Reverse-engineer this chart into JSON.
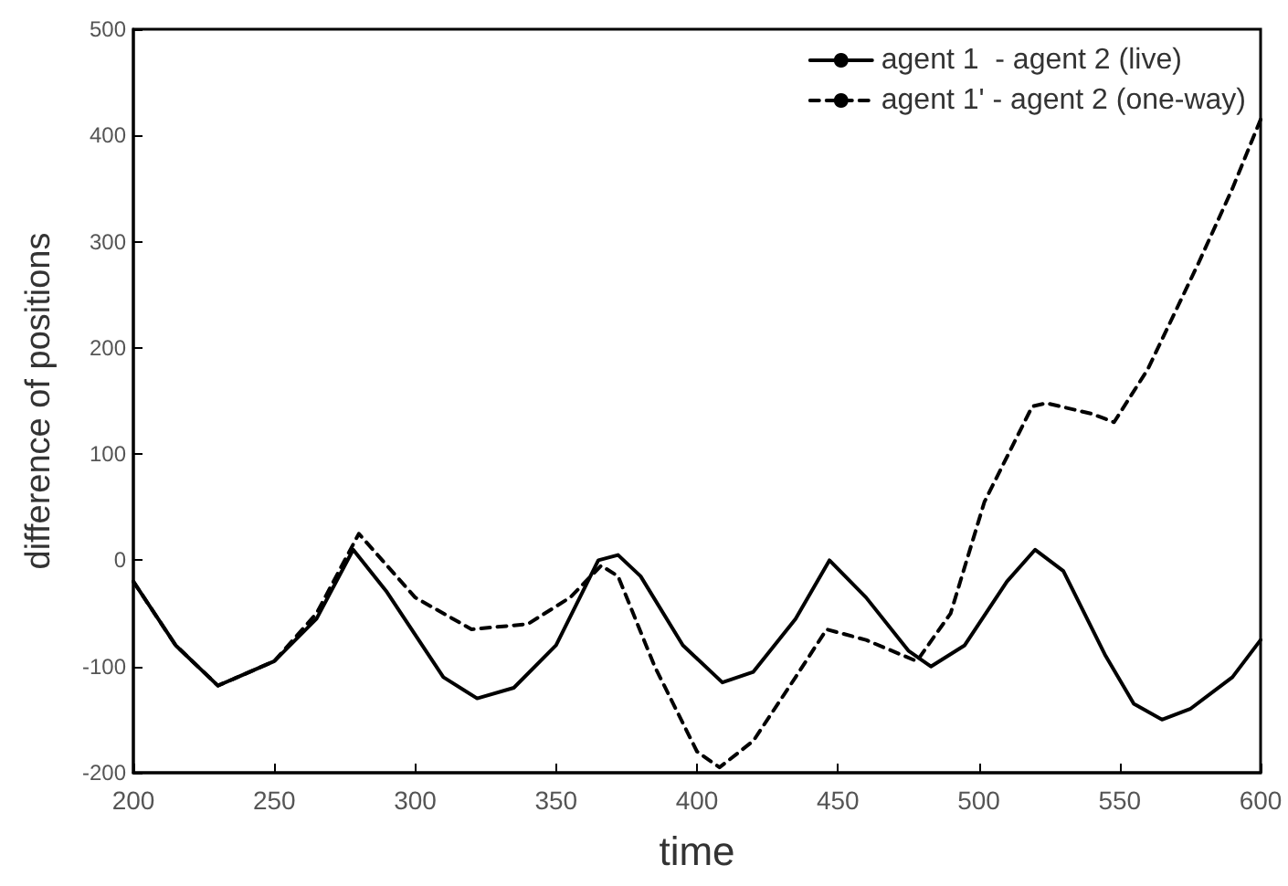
{
  "chart_data": {
    "type": "line",
    "xlabel": "time",
    "ylabel": "difference of positions",
    "xlim": [
      200,
      600
    ],
    "xticks": [
      200,
      250,
      300,
      350,
      400,
      450,
      500,
      550,
      600
    ],
    "ylim": [
      -200,
      500
    ],
    "yticks": [
      -200,
      -100,
      0,
      100,
      200,
      300,
      400,
      500
    ],
    "grid": false,
    "legend": "top right",
    "marker": "none",
    "series": [
      {
        "name": "agent 1  - agent 2 (live)",
        "color": "#000000",
        "line_style": "solid",
        "x": [
          200,
          215,
          230,
          250,
          265,
          278,
          290,
          310,
          322,
          335,
          350,
          365,
          372,
          380,
          395,
          409,
          420,
          435,
          447,
          460,
          475,
          483,
          495,
          510,
          520,
          530,
          545,
          555,
          565,
          575,
          590,
          600
        ],
        "values": [
          -20,
          -80,
          -118,
          -95,
          -55,
          10,
          -30,
          -110,
          -130,
          -120,
          -80,
          0,
          5,
          -15,
          -80,
          -115,
          -105,
          -55,
          0,
          -35,
          -85,
          -100,
          -80,
          -20,
          10,
          -10,
          -90,
          -135,
          -150,
          -140,
          -110,
          -75
        ]
      },
      {
        "name": "agent 1' - agent 2 (one-way)",
        "color": "#000000",
        "line_style": "dashed",
        "x": [
          200,
          215,
          230,
          250,
          265,
          280,
          300,
          320,
          340,
          355,
          366,
          372,
          385,
          400,
          408,
          420,
          435,
          446,
          460,
          478,
          490,
          502,
          519,
          524,
          540,
          548,
          560,
          578,
          590,
          600
        ],
        "values": [
          -20,
          -80,
          -118,
          -95,
          -50,
          25,
          -35,
          -65,
          -60,
          -35,
          -5,
          -15,
          -100,
          -180,
          -195,
          -170,
          -110,
          -65,
          -75,
          -95,
          -50,
          55,
          145,
          148,
          138,
          130,
          180,
          280,
          350,
          415
        ]
      }
    ]
  }
}
